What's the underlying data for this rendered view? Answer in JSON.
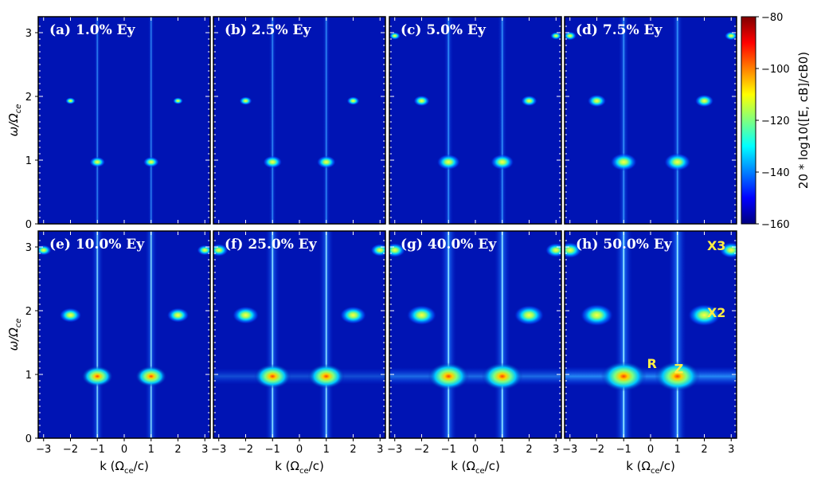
{
  "chart_data": {
    "type": "heatmap",
    "x_range": [
      -3.2,
      3.2
    ],
    "y_range": [
      0,
      3.25
    ],
    "x_ticks": [
      "−3",
      "−2",
      "−1",
      "0",
      "1",
      "2",
      "3"
    ],
    "y_ticks": [
      "0",
      "1",
      "2",
      "3"
    ],
    "xlabel": "k (Ω",
    "xlabel_sub": "ce",
    "xlabel_tail": "/c)",
    "ylabel": "ω/Ω",
    "ylabel_sub": "ce",
    "colorbar": {
      "range": [
        -160,
        -80
      ],
      "ticks": [
        "−160",
        "−140",
        "−120",
        "−100",
        "−80"
      ],
      "label": "20 * log10([E, cB]/cB0)",
      "colormap": "jet"
    },
    "panels": [
      {
        "title": "(a) 1.0% Ey",
        "amplitude_percent": 1.0,
        "intensity": 0.12
      },
      {
        "title": "(b) 2.5% Ey",
        "amplitude_percent": 2.5,
        "intensity": 0.22
      },
      {
        "title": "(c) 5.0% Ey",
        "amplitude_percent": 5.0,
        "intensity": 0.35
      },
      {
        "title": "(d) 7.5% Ey",
        "amplitude_percent": 7.5,
        "intensity": 0.45
      },
      {
        "title": "(e) 10.0% Ey",
        "amplitude_percent": 10.0,
        "intensity": 0.58
      },
      {
        "title": "(f) 25.0% Ey",
        "amplitude_percent": 25.0,
        "intensity": 0.75
      },
      {
        "title": "(g) 40.0% Ey",
        "amplitude_percent": 40.0,
        "intensity": 0.88
      },
      {
        "title": "(h) 50.0% Ey",
        "amplitude_percent": 50.0,
        "intensity": 1.0
      }
    ],
    "features": {
      "vertical_lines_k": [
        -1,
        1
      ],
      "spots": [
        {
          "k": -1,
          "w": 0.97
        },
        {
          "k": 1,
          "w": 0.97
        },
        {
          "k": -2,
          "w": 1.93
        },
        {
          "k": 2,
          "w": 1.93
        },
        {
          "k": -3,
          "w": 2.95
        },
        {
          "k": 3,
          "w": 2.95
        }
      ],
      "horizontal_band_w": 0.97
    },
    "annotations": [
      {
        "panel": 7,
        "text": "X3",
        "k": 2.45,
        "w": 2.95
      },
      {
        "panel": 7,
        "text": "X2",
        "k": 2.45,
        "w": 1.9
      },
      {
        "panel": 7,
        "text": "R",
        "k": 0.05,
        "w": 1.1
      },
      {
        "panel": 7,
        "text": "Z",
        "k": 1.05,
        "w": 1.02
      }
    ],
    "grid": false
  }
}
